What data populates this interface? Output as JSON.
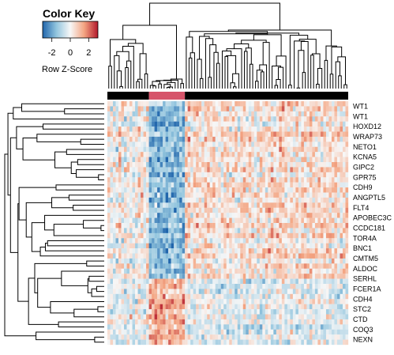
{
  "chart_data": {
    "type": "heatmap",
    "color_key": {
      "title": "Color Key",
      "subtitle": "Row Z-Score",
      "ticks": [
        -2,
        0,
        2
      ],
      "range": [
        -3,
        3
      ],
      "low_color": "#2166ac",
      "mid_color": "#f7f7f7",
      "high_color": "#b2182b"
    },
    "row_labels": [
      "WT1",
      "WT1",
      "HOXD12",
      "WRAP73",
      "NETO1",
      "KCNA5",
      "GIPC2",
      "GPR75",
      "CDH9",
      "ANGPTL5",
      "FLT4",
      "APOBEC3C",
      "CCDC181",
      "TOR4A",
      "BNC1",
      "CMTM5",
      "ALDOC",
      "SERHL",
      "FCER1A",
      "CDH4",
      "STC2",
      "CTD",
      "COQ3",
      "NEXN"
    ],
    "column_count": 87,
    "column_groups": [
      {
        "color": "#000000",
        "count": 15
      },
      {
        "color": "#d6546a",
        "count": 13
      },
      {
        "color": "#000000",
        "count": 59
      }
    ],
    "rows_per_label": 2
  }
}
